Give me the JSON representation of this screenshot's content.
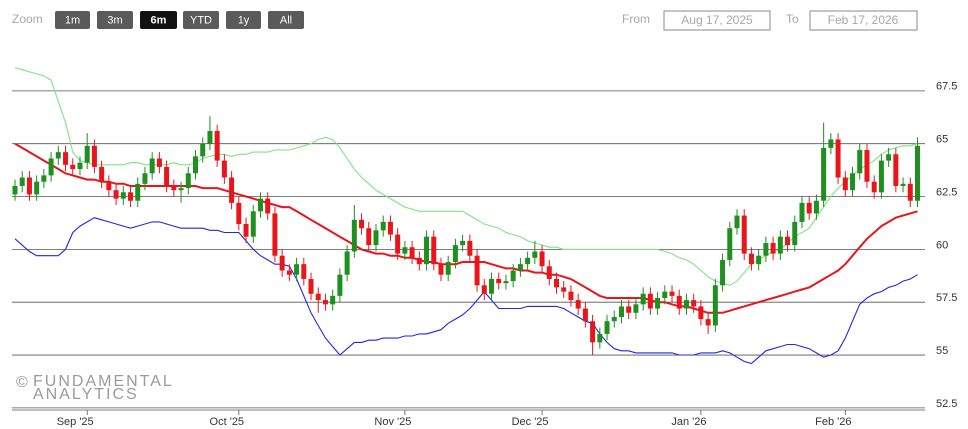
{
  "range_selector": {
    "zoom_label": "Zoom",
    "buttons": [
      "1m",
      "3m",
      "6m",
      "YTD",
      "1y",
      "All"
    ],
    "selected": 2,
    "from_label": "From",
    "from_value": "Aug 17, 2025",
    "to_label": "To",
    "to_value": "Feb 17, 2026"
  },
  "watermark": {
    "symbol": "©",
    "lines": [
      "FUNDAMENTAL",
      "ANALYTICS"
    ]
  },
  "chart_data": {
    "type": "candlestick",
    "categories": [
      null,
      null,
      null,
      null,
      null,
      null,
      null,
      null,
      null,
      null,
      "Sep '25",
      null,
      null,
      null,
      null,
      null,
      null,
      null,
      null,
      null,
      null,
      null,
      null,
      null,
      null,
      null,
      null,
      null,
      null,
      null,
      null,
      "Oct '25",
      null,
      null,
      null,
      null,
      null,
      null,
      null,
      null,
      null,
      null,
      null,
      null,
      null,
      null,
      null,
      null,
      null,
      null,
      null,
      null,
      null,
      null,
      "Nov '25",
      null,
      null,
      null,
      null,
      null,
      null,
      null,
      null,
      null,
      null,
      null,
      null,
      null,
      null,
      null,
      null,
      null,
      null,
      "Dec '25",
      null,
      null,
      null,
      null,
      null,
      null,
      null,
      null,
      null,
      null,
      null,
      null,
      null,
      null,
      null,
      null,
      null,
      null,
      null,
      null,
      null,
      "Jan '26",
      null,
      null,
      null,
      null,
      null,
      null,
      null,
      null,
      null,
      null,
      null,
      null,
      null,
      null,
      null,
      null,
      null,
      null,
      null,
      "Feb '26",
      null,
      null,
      null,
      null,
      null,
      null,
      null,
      null,
      null,
      null
    ],
    "open": [
      62.6,
      63.0,
      63.4,
      62.6,
      63.2,
      63.5,
      64.3,
      64.6,
      64.0,
      63.8,
      64.1,
      64.9,
      63.9,
      63.2,
      62.8,
      62.4,
      62.7,
      62.3,
      63.1,
      63.6,
      64.3,
      63.9,
      63.0,
      62.8,
      62.9,
      63.6,
      64.4,
      65.0,
      65.6,
      64.2,
      63.4,
      62.2,
      61.2,
      60.6,
      61.8,
      62.4,
      61.7,
      59.7,
      59.0,
      58.8,
      59.3,
      58.6,
      57.9,
      57.6,
      57.4,
      57.8,
      58.8,
      59.9,
      61.4,
      61.0,
      60.2,
      60.9,
      61.3,
      60.7,
      59.8,
      60.1,
      59.6,
      59.3,
      60.6,
      59.3,
      58.8,
      59.4,
      60.2,
      60.4,
      59.7,
      58.3,
      57.9,
      58.6,
      58.4,
      58.5,
      59.0,
      59.3,
      59.6,
      59.9,
      59.2,
      58.6,
      58.2,
      58.0,
      57.6,
      57.2,
      56.6,
      55.6,
      56.0,
      56.6,
      56.8,
      57.3,
      57.0,
      57.4,
      57.9,
      57.2,
      57.7,
      58.0,
      57.8,
      57.2,
      57.6,
      57.3,
      56.7,
      56.4,
      58.3,
      59.5,
      61.0,
      61.6,
      59.8,
      59.3,
      59.7,
      60.3,
      59.8,
      60.6,
      60.2,
      61.3,
      62.2,
      61.7,
      62.3,
      64.8,
      65.2,
      63.4,
      62.8,
      63.6,
      64.7,
      63.2,
      62.7,
      64.2,
      64.5,
      63.0,
      63.1,
      62.3
    ],
    "high": [
      63.3,
      63.7,
      63.7,
      63.5,
      63.8,
      64.6,
      64.9,
      64.9,
      64.3,
      64.4,
      65.5,
      65.2,
      64.2,
      63.5,
      63.1,
      63.0,
      63.0,
      63.4,
      63.9,
      64.6,
      64.6,
      64.2,
      63.3,
      63.2,
      63.9,
      64.7,
      65.3,
      66.3,
      65.9,
      64.5,
      63.7,
      62.5,
      61.5,
      62.1,
      62.7,
      62.7,
      62.0,
      60.0,
      59.3,
      59.6,
      59.6,
      58.9,
      58.2,
      57.9,
      58.1,
      59.1,
      60.2,
      62.1,
      61.7,
      61.3,
      61.2,
      61.6,
      61.6,
      61.0,
      60.4,
      60.4,
      59.9,
      60.9,
      60.9,
      59.6,
      59.7,
      60.5,
      60.7,
      60.7,
      60.0,
      58.6,
      58.9,
      58.9,
      58.8,
      59.3,
      59.6,
      59.9,
      60.4,
      60.2,
      59.5,
      58.9,
      58.5,
      58.3,
      57.9,
      57.5,
      56.9,
      56.3,
      56.9,
      57.1,
      57.6,
      57.6,
      57.7,
      58.2,
      58.2,
      58.0,
      58.3,
      58.3,
      58.1,
      57.9,
      57.9,
      57.6,
      57.0,
      58.6,
      59.8,
      61.3,
      61.9,
      61.9,
      60.1,
      60.0,
      60.6,
      60.6,
      60.9,
      60.9,
      61.6,
      62.5,
      62.5,
      62.6,
      66.0,
      65.5,
      65.5,
      63.7,
      63.9,
      65.0,
      65.0,
      63.5,
      64.5,
      64.8,
      64.8,
      63.4,
      63.4,
      65.3
    ],
    "low": [
      62.3,
      62.7,
      62.3,
      62.3,
      62.9,
      63.2,
      64.0,
      63.7,
      63.5,
      63.5,
      63.8,
      63.6,
      62.9,
      62.5,
      62.1,
      62.1,
      62.0,
      62.0,
      62.8,
      63.3,
      63.6,
      62.7,
      62.5,
      62.2,
      62.6,
      63.3,
      64.1,
      64.7,
      63.9,
      63.1,
      61.9,
      60.9,
      60.3,
      60.3,
      61.5,
      61.4,
      59.4,
      58.7,
      58.5,
      58.5,
      58.3,
      57.6,
      57.0,
      57.1,
      57.1,
      57.5,
      58.5,
      59.6,
      60.7,
      59.9,
      59.9,
      60.6,
      60.4,
      59.5,
      59.5,
      59.3,
      59.0,
      59.0,
      59.0,
      58.5,
      58.5,
      59.1,
      59.9,
      59.4,
      58.0,
      57.6,
      57.6,
      58.1,
      58.1,
      58.2,
      58.7,
      59.0,
      59.3,
      58.9,
      58.3,
      57.9,
      57.7,
      57.3,
      56.9,
      56.3,
      55.0,
      55.3,
      55.7,
      56.3,
      56.5,
      56.7,
      56.7,
      57.1,
      56.9,
      56.9,
      57.4,
      57.5,
      56.9,
      56.9,
      57.0,
      56.4,
      56.0,
      56.1,
      58.0,
      59.2,
      60.7,
      59.5,
      59.0,
      59.0,
      59.4,
      59.5,
      59.5,
      59.9,
      59.9,
      61.0,
      61.4,
      61.4,
      62.0,
      64.5,
      63.1,
      62.5,
      62.5,
      63.3,
      62.9,
      62.4,
      62.4,
      63.9,
      62.7,
      62.7,
      62.0,
      62.0
    ],
    "close": [
      63.0,
      63.4,
      62.6,
      63.2,
      63.5,
      64.3,
      64.6,
      64.0,
      63.8,
      64.1,
      64.9,
      63.9,
      63.2,
      62.8,
      62.4,
      62.7,
      62.3,
      63.1,
      63.6,
      64.3,
      63.9,
      63.0,
      62.8,
      62.9,
      63.6,
      64.4,
      65.0,
      65.6,
      64.2,
      63.4,
      62.2,
      61.2,
      60.6,
      61.8,
      62.4,
      61.7,
      59.7,
      59.0,
      58.8,
      59.3,
      58.6,
      57.9,
      57.6,
      57.4,
      57.8,
      58.8,
      59.9,
      61.4,
      61.0,
      60.2,
      60.9,
      61.3,
      60.7,
      59.8,
      60.1,
      59.6,
      59.3,
      60.6,
      59.3,
      58.8,
      59.4,
      60.2,
      60.4,
      59.7,
      58.3,
      57.9,
      58.6,
      58.4,
      58.5,
      59.0,
      59.3,
      59.6,
      59.9,
      59.2,
      58.6,
      58.2,
      58.0,
      57.6,
      57.2,
      56.6,
      55.6,
      56.0,
      56.6,
      56.8,
      57.3,
      57.0,
      57.4,
      57.9,
      57.2,
      57.7,
      58.0,
      57.8,
      57.2,
      57.6,
      57.3,
      56.7,
      56.4,
      58.3,
      59.5,
      61.0,
      61.6,
      59.8,
      59.3,
      59.7,
      60.3,
      59.8,
      60.6,
      60.2,
      61.3,
      62.2,
      61.7,
      62.3,
      64.8,
      65.2,
      63.4,
      62.8,
      63.6,
      64.7,
      63.2,
      62.7,
      64.2,
      64.5,
      63.0,
      63.1,
      62.3,
      64.9
    ],
    "up_color": "#1f8f1f",
    "down_color": "#e8151b",
    "series": [
      {
        "color": "#7fe57f",
        "values": [
          68.6,
          68.5,
          68.4,
          68.3,
          68.2,
          68.0,
          67.0,
          66.0,
          64.6,
          64.2,
          64.1,
          64.0,
          64.0,
          64.0,
          64.0,
          64.0,
          64.1,
          64.1,
          64.0,
          64.0,
          64.0,
          64.0,
          64.1,
          64.0,
          64.0,
          64.1,
          64.3,
          64.4,
          64.5,
          64.5,
          64.4,
          64.5,
          64.5,
          64.6,
          64.6,
          64.6,
          64.7,
          64.7,
          64.7,
          64.8,
          64.9,
          65.0,
          65.2,
          65.3,
          65.2,
          64.8,
          64.3,
          63.8,
          63.4,
          63.1,
          62.8,
          62.6,
          62.4,
          62.2,
          62.0,
          61.9,
          61.8,
          61.8,
          61.8,
          61.8,
          61.8,
          61.8,
          61.8,
          61.6,
          61.4,
          61.2,
          61.1,
          61.0,
          60.8,
          60.7,
          60.6,
          60.4,
          60.3,
          60.2,
          60.1,
          60.1,
          60.0,
          60.0,
          60.0,
          60.0,
          60.0,
          60.0,
          60.0,
          60.0,
          60.0,
          60.0,
          60.0,
          60.0,
          60.0,
          60.0,
          59.9,
          59.8,
          59.6,
          59.5,
          59.3,
          59.0,
          58.7,
          58.5,
          58.4,
          58.3,
          58.5,
          58.9,
          59.3,
          59.5,
          59.7,
          59.9,
          60.0,
          60.3,
          60.6,
          60.8,
          61.0,
          61.5,
          62.0,
          62.5,
          62.9,
          63.2,
          63.5,
          63.8,
          64.0,
          64.2,
          64.5,
          64.7,
          64.8,
          64.9,
          64.9,
          65.0
        ]
      },
      {
        "color": "#e8151b",
        "values": [
          65.0,
          64.8,
          64.6,
          64.4,
          64.2,
          64.0,
          63.8,
          63.6,
          63.5,
          63.4,
          63.3,
          63.3,
          63.2,
          63.2,
          63.1,
          63.1,
          63.0,
          63.0,
          63.0,
          63.0,
          63.0,
          63.0,
          63.0,
          63.0,
          63.0,
          63.0,
          62.9,
          62.9,
          62.9,
          62.8,
          62.7,
          62.6,
          62.5,
          62.4,
          62.3,
          62.2,
          62.1,
          62.0,
          62.0,
          61.8,
          61.6,
          61.4,
          61.2,
          61.0,
          60.8,
          60.6,
          60.4,
          60.2,
          60.0,
          59.9,
          59.8,
          59.8,
          59.7,
          59.7,
          59.6,
          59.6,
          59.5,
          59.4,
          59.4,
          59.3,
          59.3,
          59.3,
          59.4,
          59.4,
          59.4,
          59.4,
          59.3,
          59.2,
          59.1,
          59.1,
          59.0,
          59.0,
          58.9,
          58.9,
          58.8,
          58.8,
          58.7,
          58.6,
          58.4,
          58.2,
          58.0,
          57.8,
          57.7,
          57.7,
          57.7,
          57.7,
          57.7,
          57.7,
          57.6,
          57.5,
          57.5,
          57.4,
          57.3,
          57.3,
          57.2,
          57.1,
          57.0,
          57.0,
          57.0,
          57.1,
          57.2,
          57.3,
          57.4,
          57.5,
          57.6,
          57.7,
          57.8,
          57.9,
          58.0,
          58.1,
          58.2,
          58.4,
          58.6,
          58.8,
          59.0,
          59.3,
          59.7,
          60.1,
          60.5,
          60.8,
          61.1,
          61.3,
          61.5,
          61.6,
          61.7,
          61.8
        ]
      },
      {
        "color": "#2424e6",
        "values": [
          60.5,
          60.2,
          59.9,
          59.7,
          59.7,
          59.7,
          59.7,
          60.0,
          60.8,
          61.1,
          61.3,
          61.5,
          61.4,
          61.3,
          61.2,
          61.1,
          61.0,
          61.1,
          61.2,
          61.3,
          61.3,
          61.2,
          61.1,
          61.0,
          61.0,
          61.0,
          61.0,
          60.9,
          60.9,
          60.8,
          60.8,
          60.8,
          60.4,
          60.0,
          59.7,
          59.5,
          59.3,
          59.3,
          59.2,
          58.6,
          57.8,
          57.0,
          56.4,
          55.8,
          55.4,
          55.0,
          55.3,
          55.6,
          55.6,
          55.7,
          55.7,
          55.8,
          55.8,
          55.8,
          55.9,
          55.9,
          56.0,
          56.0,
          56.1,
          56.2,
          56.5,
          56.7,
          56.9,
          57.2,
          57.6,
          58.0,
          57.6,
          57.2,
          57.2,
          57.2,
          57.2,
          57.3,
          57.3,
          57.3,
          57.3,
          57.3,
          57.2,
          57.0,
          56.8,
          56.6,
          56.5,
          56.0,
          55.6,
          55.3,
          55.2,
          55.2,
          55.1,
          55.1,
          55.1,
          55.1,
          55.1,
          55.1,
          55.0,
          55.0,
          55.0,
          55.1,
          55.1,
          55.1,
          55.2,
          55.1,
          54.9,
          54.7,
          54.6,
          54.9,
          55.2,
          55.3,
          55.4,
          55.5,
          55.5,
          55.4,
          55.3,
          55.1,
          54.9,
          55.0,
          55.2,
          55.8,
          56.6,
          57.4,
          57.7,
          57.9,
          58.0,
          58.2,
          58.3,
          58.5,
          58.6,
          58.8
        ]
      }
    ],
    "ylim": [
      52.4,
      70
    ],
    "yticks": [
      52.5,
      55,
      57.5,
      60,
      62.5,
      65,
      67.5
    ],
    "grid": true
  }
}
